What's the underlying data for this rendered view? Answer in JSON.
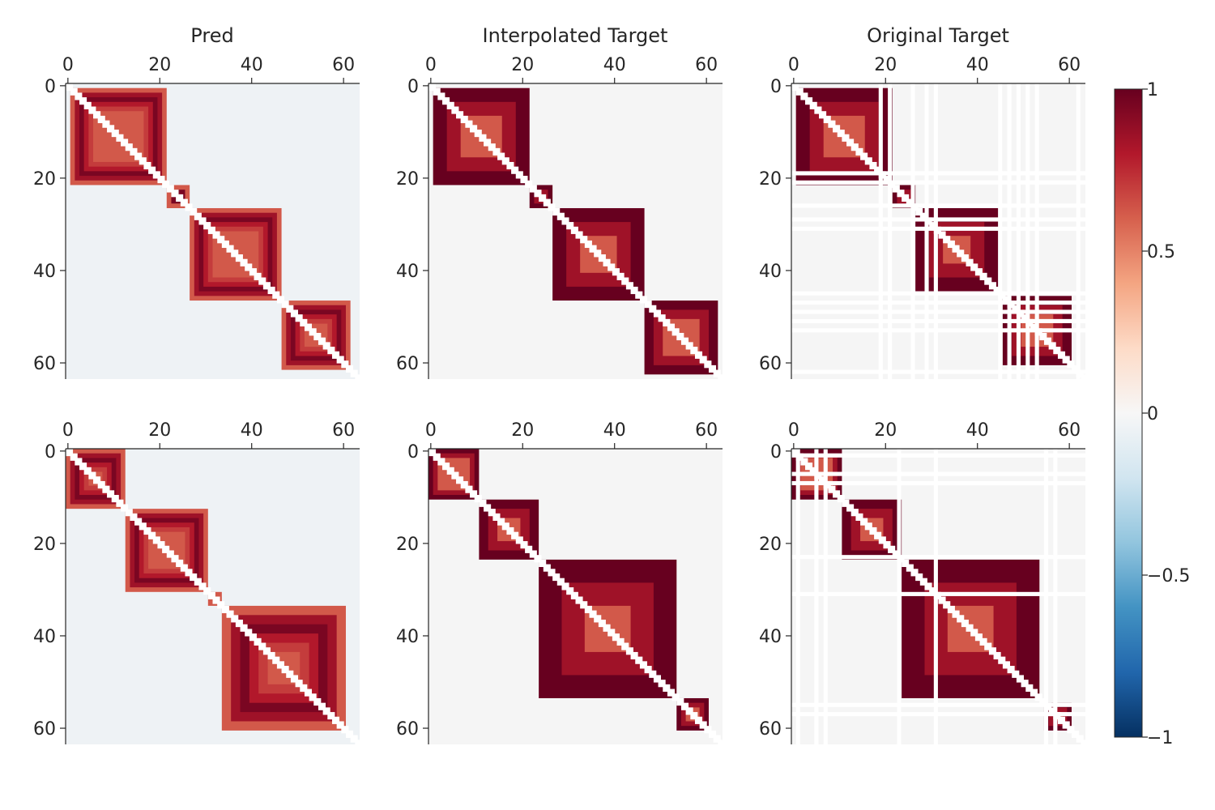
{
  "figure": {
    "column_titles": [
      "Pred",
      "Interpolated Target",
      "Original Target"
    ],
    "tick_labels": [
      "0",
      "20",
      "40",
      "60"
    ],
    "size": 64
  },
  "colorbar": {
    "title": "",
    "min": -1,
    "max": 1,
    "tick_labels": [
      "1",
      "0.5",
      "0",
      "−0.5",
      "−1"
    ],
    "tick_values": [
      1,
      0.5,
      0,
      -0.5,
      -1
    ],
    "colormap": "RdBu_r",
    "stops": [
      "#053061",
      "#2166ac",
      "#4393c3",
      "#92c5de",
      "#d1e5f0",
      "#f7f7f7",
      "#fddbc7",
      "#f4a582",
      "#d6604d",
      "#b2182b",
      "#67001f"
    ]
  },
  "colors": {
    "background": "#f5f5f5",
    "diagonal": "#ffffff",
    "pred_background": "#eef2f5",
    "gap": "#ffffff"
  },
  "chart_data": [
    {
      "type": "heatmap",
      "row": 1,
      "title": "Pred",
      "xlim": [
        0,
        63
      ],
      "ylim": [
        63,
        0
      ],
      "kind": "pred",
      "blocks": [
        {
          "start": 1,
          "end": 22,
          "values": [
            0.62,
            0.85,
            0.95,
            0.8,
            0.7,
            0.62
          ]
        },
        {
          "start": 22,
          "end": 27,
          "values": [
            0.62,
            0.95,
            0.7
          ]
        },
        {
          "start": 27,
          "end": 47,
          "values": [
            0.62,
            0.85,
            0.95,
            0.8,
            0.7,
            0.62
          ]
        },
        {
          "start": 47,
          "end": 62,
          "values": [
            0.62,
            0.85,
            0.95,
            0.8,
            0.7,
            0.62
          ]
        }
      ]
    },
    {
      "type": "heatmap",
      "row": 1,
      "title": "Interpolated Target",
      "xlim": [
        0,
        63
      ],
      "ylim": [
        63,
        0
      ],
      "kind": "target",
      "blocks": [
        {
          "start": 1,
          "end": 22,
          "values": [
            1.0,
            0.85,
            0.62
          ]
        },
        {
          "start": 22,
          "end": 27,
          "values": [
            1.0,
            0.85,
            0.62
          ]
        },
        {
          "start": 27,
          "end": 47,
          "values": [
            1.0,
            0.85,
            0.62
          ]
        },
        {
          "start": 47,
          "end": 63,
          "values": [
            1.0,
            0.85,
            0.62
          ]
        }
      ]
    },
    {
      "type": "heatmap",
      "row": 1,
      "title": "Original Target",
      "xlim": [
        0,
        63
      ],
      "ylim": [
        63,
        0
      ],
      "kind": "target",
      "blocks": [
        {
          "start": 1,
          "end": 22,
          "values": [
            1.0,
            0.85,
            0.62
          ]
        },
        {
          "start": 22,
          "end": 27,
          "values": [
            1.0,
            0.85,
            0.62
          ]
        },
        {
          "start": 27,
          "end": 45,
          "values": [
            1.0,
            0.85,
            0.62
          ]
        },
        {
          "start": 46,
          "end": 61,
          "values": [
            1.0,
            0.85,
            0.62
          ]
        }
      ],
      "gap_lines": [
        19,
        21,
        26,
        29,
        31,
        45,
        47,
        49,
        51,
        53,
        62
      ]
    },
    {
      "type": "heatmap",
      "row": 2,
      "title": "",
      "xlim": [
        0,
        63
      ],
      "ylim": [
        63,
        0
      ],
      "kind": "pred",
      "blocks": [
        {
          "start": 0,
          "end": 13,
          "values": [
            0.62,
            0.85,
            0.95,
            0.8,
            0.7,
            0.62
          ]
        },
        {
          "start": 13,
          "end": 31,
          "values": [
            0.62,
            0.85,
            0.95,
            0.8,
            0.7,
            0.62
          ]
        },
        {
          "start": 31,
          "end": 34,
          "values": [
            0.62,
            0.7
          ]
        },
        {
          "start": 34,
          "end": 61,
          "values": [
            0.62,
            0.85,
            0.95,
            0.8,
            0.7,
            0.62
          ]
        }
      ]
    },
    {
      "type": "heatmap",
      "row": 2,
      "title": "",
      "xlim": [
        0,
        63
      ],
      "ylim": [
        63,
        0
      ],
      "kind": "target",
      "blocks": [
        {
          "start": 0,
          "end": 11,
          "values": [
            1.0,
            0.85,
            0.62
          ]
        },
        {
          "start": 11,
          "end": 24,
          "values": [
            1.0,
            0.85,
            0.62
          ]
        },
        {
          "start": 24,
          "end": 54,
          "values": [
            1.0,
            0.85,
            0.62
          ]
        },
        {
          "start": 54,
          "end": 61,
          "values": [
            1.0,
            0.85,
            0.62
          ]
        }
      ]
    },
    {
      "type": "heatmap",
      "row": 2,
      "title": "",
      "xlim": [
        0,
        63
      ],
      "ylim": [
        63,
        0
      ],
      "kind": "target",
      "blocks": [
        {
          "start": 0,
          "end": 11,
          "values": [
            1.0,
            0.85,
            0.62
          ]
        },
        {
          "start": 11,
          "end": 24,
          "values": [
            1.0,
            0.85,
            0.62
          ]
        },
        {
          "start": 24,
          "end": 54,
          "values": [
            1.0,
            0.85,
            0.62
          ]
        },
        {
          "start": 55,
          "end": 61,
          "values": [
            1.0,
            0.85,
            0.62
          ]
        }
      ],
      "gap_lines": [
        1,
        5,
        7,
        23,
        31,
        55,
        57
      ]
    }
  ]
}
